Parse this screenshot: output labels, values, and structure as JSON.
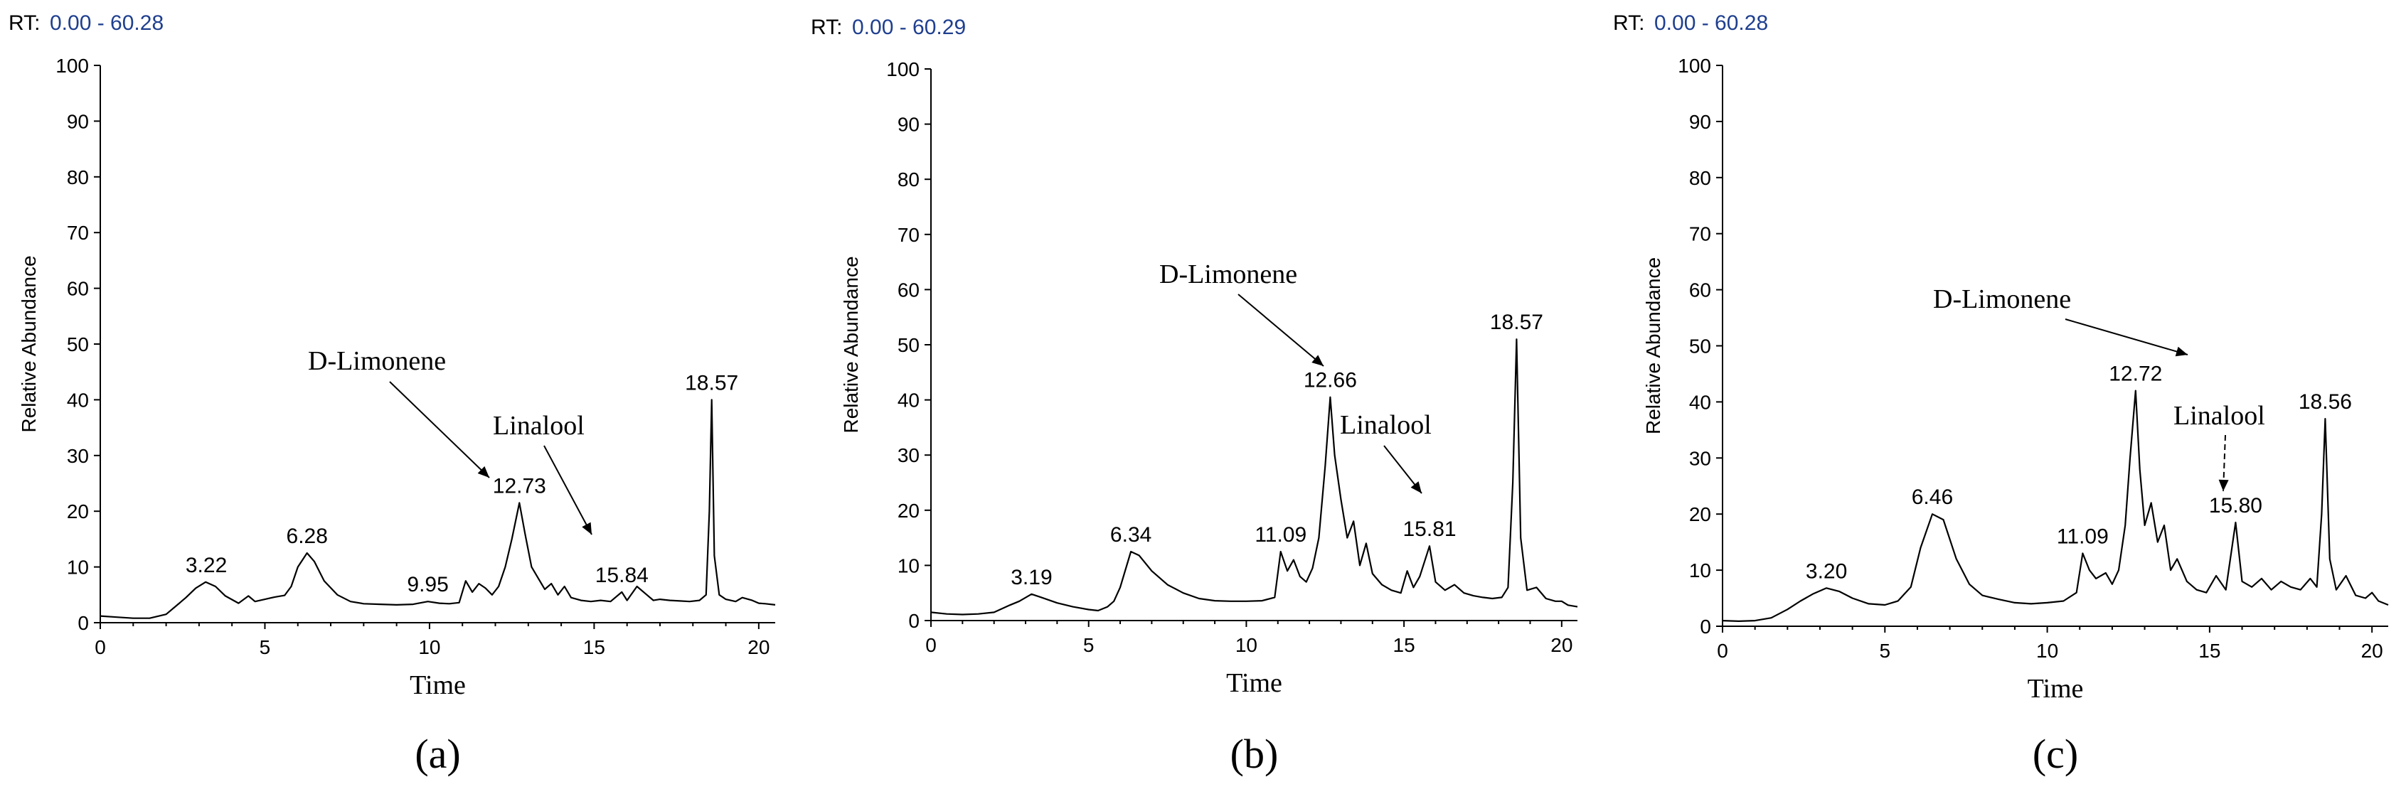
{
  "chart_data": [
    {
      "type": "line",
      "panel_label": "(a)",
      "rt_prefix": "RT:",
      "rt_range": "0.00 - 60.28",
      "xlabel": "Time",
      "ylabel": "Relative Abundance",
      "xlim": [
        0,
        20.5
      ],
      "ylim": [
        0,
        100
      ],
      "xticks": [
        "0",
        "5",
        "10",
        "15",
        "20"
      ],
      "yticks": [
        "0",
        "10",
        "20",
        "30",
        "40",
        "50",
        "60",
        "70",
        "80",
        "90",
        "100"
      ],
      "series": [
        {
          "x": [
            0.0,
            0.5,
            1.0,
            1.5,
            2.0,
            2.3,
            2.6,
            2.9,
            3.2,
            3.5,
            3.8,
            4.2,
            4.5,
            4.7,
            5.0,
            5.3,
            5.6,
            5.8,
            6.0,
            6.28,
            6.5,
            6.8,
            7.2,
            7.6,
            8.0,
            8.5,
            9.0,
            9.5,
            9.95,
            10.3,
            10.6,
            10.9,
            11.1,
            11.3,
            11.5,
            11.7,
            11.9,
            12.1,
            12.3,
            12.5,
            12.73,
            12.9,
            13.1,
            13.3,
            13.5,
            13.7,
            13.9,
            14.1,
            14.3,
            14.6,
            14.9,
            15.2,
            15.5,
            15.84,
            16.0,
            16.3,
            16.6,
            16.8,
            17.0,
            17.3,
            17.6,
            17.9,
            18.2,
            18.4,
            18.5,
            18.57,
            18.65,
            18.8,
            19.0,
            19.3,
            19.5,
            19.8,
            20.0,
            20.2,
            20.5
          ],
          "values": [
            1.2,
            1.0,
            0.8,
            0.8,
            1.5,
            3.0,
            4.5,
            6.2,
            7.3,
            6.5,
            4.8,
            3.5,
            4.8,
            3.8,
            4.2,
            4.6,
            4.9,
            6.5,
            10.0,
            12.5,
            11.0,
            7.5,
            5.0,
            3.8,
            3.4,
            3.3,
            3.2,
            3.3,
            3.8,
            3.5,
            3.4,
            3.6,
            7.5,
            5.5,
            7.0,
            6.2,
            5.0,
            6.5,
            10.0,
            15.0,
            21.5,
            16.0,
            10.0,
            8.0,
            6.0,
            7.0,
            5.0,
            6.5,
            4.5,
            4.0,
            3.8,
            4.0,
            3.8,
            5.5,
            4.0,
            6.5,
            5.0,
            4.0,
            4.2,
            4.0,
            3.9,
            3.8,
            4.0,
            5.0,
            20.0,
            40.0,
            12.0,
            5.0,
            4.2,
            3.8,
            4.5,
            4.0,
            3.5,
            3.4,
            3.2
          ]
        }
      ],
      "peak_labels": [
        {
          "x": 3.22,
          "text": "3.22"
        },
        {
          "x": 6.28,
          "text": "6.28"
        },
        {
          "x": 9.95,
          "text": "9.95"
        },
        {
          "x": 12.73,
          "text": "12.73"
        },
        {
          "x": 15.84,
          "text": "15.84"
        },
        {
          "x": 18.57,
          "text": "18.57"
        }
      ],
      "annotations": [
        {
          "text": "D-Limonene",
          "target_x": 12.73
        },
        {
          "text": "Linalool",
          "target_x": 15.84
        }
      ]
    },
    {
      "type": "line",
      "panel_label": "(b)",
      "rt_prefix": "RT:",
      "rt_range": "0.00 - 60.29",
      "xlabel": "Time",
      "ylabel": "Relative Abundance",
      "xlim": [
        0,
        20.5
      ],
      "ylim": [
        0,
        100
      ],
      "xticks": [
        "0",
        "5",
        "10",
        "15",
        "20"
      ],
      "yticks": [
        "0",
        "10",
        "20",
        "30",
        "40",
        "50",
        "60",
        "70",
        "80",
        "90",
        "100"
      ],
      "series": [
        {
          "x": [
            0.0,
            0.5,
            1.0,
            1.5,
            2.0,
            2.5,
            2.8,
            3.19,
            3.5,
            4.0,
            4.5,
            5.0,
            5.3,
            5.6,
            5.8,
            6.0,
            6.34,
            6.6,
            7.0,
            7.5,
            8.0,
            8.5,
            9.0,
            9.5,
            10.0,
            10.5,
            10.9,
            11.09,
            11.3,
            11.5,
            11.7,
            11.9,
            12.1,
            12.3,
            12.5,
            12.66,
            12.8,
            13.0,
            13.2,
            13.4,
            13.6,
            13.8,
            14.0,
            14.3,
            14.6,
            14.9,
            15.1,
            15.3,
            15.5,
            15.81,
            16.0,
            16.3,
            16.6,
            16.9,
            17.2,
            17.5,
            17.8,
            18.1,
            18.3,
            18.45,
            18.57,
            18.7,
            18.9,
            19.2,
            19.5,
            19.8,
            20.0,
            20.2,
            20.5
          ],
          "values": [
            1.5,
            1.2,
            1.1,
            1.2,
            1.5,
            2.8,
            3.5,
            4.8,
            4.2,
            3.2,
            2.5,
            2.0,
            1.8,
            2.5,
            3.5,
            6.0,
            12.5,
            11.8,
            9.0,
            6.5,
            5.0,
            4.0,
            3.6,
            3.5,
            3.5,
            3.6,
            4.2,
            12.5,
            9.0,
            11.0,
            8.0,
            7.0,
            9.5,
            15.0,
            28.0,
            40.5,
            30.0,
            22.0,
            15.0,
            18.0,
            10.0,
            14.0,
            8.5,
            6.5,
            5.5,
            5.0,
            9.0,
            6.0,
            8.0,
            13.5,
            7.0,
            5.5,
            6.5,
            5.0,
            4.5,
            4.2,
            4.0,
            4.2,
            6.0,
            25.0,
            51.0,
            15.0,
            5.5,
            6.0,
            4.0,
            3.5,
            3.5,
            2.8,
            2.5
          ]
        }
      ],
      "peak_labels": [
        {
          "x": 3.19,
          "text": "3.19"
        },
        {
          "x": 6.34,
          "text": "6.34"
        },
        {
          "x": 11.09,
          "text": "11.09"
        },
        {
          "x": 12.66,
          "text": "12.66"
        },
        {
          "x": 15.81,
          "text": "15.81"
        },
        {
          "x": 18.57,
          "text": "18.57"
        }
      ],
      "annotations": [
        {
          "text": "D-Limonene",
          "target_x": 12.66
        },
        {
          "text": "Linalool",
          "target_x": 15.81
        }
      ]
    },
    {
      "type": "line",
      "panel_label": "(c)",
      "rt_prefix": "RT:",
      "rt_range": "0.00 - 60.28",
      "xlabel": "Time",
      "ylabel": "Relative Abundance",
      "xlim": [
        0,
        20.5
      ],
      "ylim": [
        0,
        100
      ],
      "xticks": [
        "0",
        "5",
        "10",
        "15",
        "20"
      ],
      "yticks": [
        "0",
        "10",
        "20",
        "30",
        "40",
        "50",
        "60",
        "70",
        "80",
        "90",
        "100"
      ],
      "series": [
        {
          "x": [
            0.0,
            0.5,
            1.0,
            1.5,
            2.0,
            2.4,
            2.8,
            3.2,
            3.6,
            4.0,
            4.5,
            5.0,
            5.4,
            5.8,
            6.1,
            6.46,
            6.8,
            7.2,
            7.6,
            8.0,
            8.5,
            9.0,
            9.5,
            10.0,
            10.5,
            10.9,
            11.09,
            11.3,
            11.5,
            11.8,
            12.0,
            12.2,
            12.4,
            12.55,
            12.72,
            12.85,
            13.0,
            13.2,
            13.4,
            13.6,
            13.8,
            14.0,
            14.3,
            14.6,
            14.9,
            15.2,
            15.5,
            15.8,
            16.0,
            16.3,
            16.6,
            16.9,
            17.2,
            17.5,
            17.8,
            18.1,
            18.3,
            18.45,
            18.56,
            18.7,
            18.9,
            19.2,
            19.5,
            19.8,
            20.0,
            20.2,
            20.5
          ],
          "values": [
            1.0,
            0.9,
            1.0,
            1.5,
            3.0,
            4.5,
            5.8,
            6.8,
            6.2,
            5.0,
            4.0,
            3.8,
            4.5,
            7.0,
            14.0,
            20.0,
            19.0,
            12.0,
            7.5,
            5.5,
            4.8,
            4.2,
            4.0,
            4.2,
            4.5,
            6.0,
            13.0,
            10.0,
            8.5,
            9.5,
            7.5,
            10.0,
            18.0,
            30.0,
            42.0,
            28.0,
            18.0,
            22.0,
            15.0,
            18.0,
            10.0,
            12.0,
            8.0,
            6.5,
            6.0,
            9.0,
            6.5,
            18.5,
            8.0,
            7.0,
            8.5,
            6.5,
            8.0,
            7.0,
            6.5,
            8.5,
            7.0,
            20.0,
            37.0,
            12.0,
            6.5,
            9.0,
            5.5,
            5.0,
            6.0,
            4.5,
            3.8
          ]
        }
      ],
      "peak_labels": [
        {
          "x": 3.2,
          "text": "3.20"
        },
        {
          "x": 6.46,
          "text": "6.46"
        },
        {
          "x": 11.09,
          "text": "11.09"
        },
        {
          "x": 12.72,
          "text": "12.72"
        },
        {
          "x": 15.8,
          "text": "15.80"
        },
        {
          "x": 18.56,
          "text": "18.56"
        }
      ],
      "annotations": [
        {
          "text": "D-Limonene",
          "target_x": 12.72
        },
        {
          "text": "Linalool",
          "target_x": 15.8
        }
      ]
    }
  ]
}
